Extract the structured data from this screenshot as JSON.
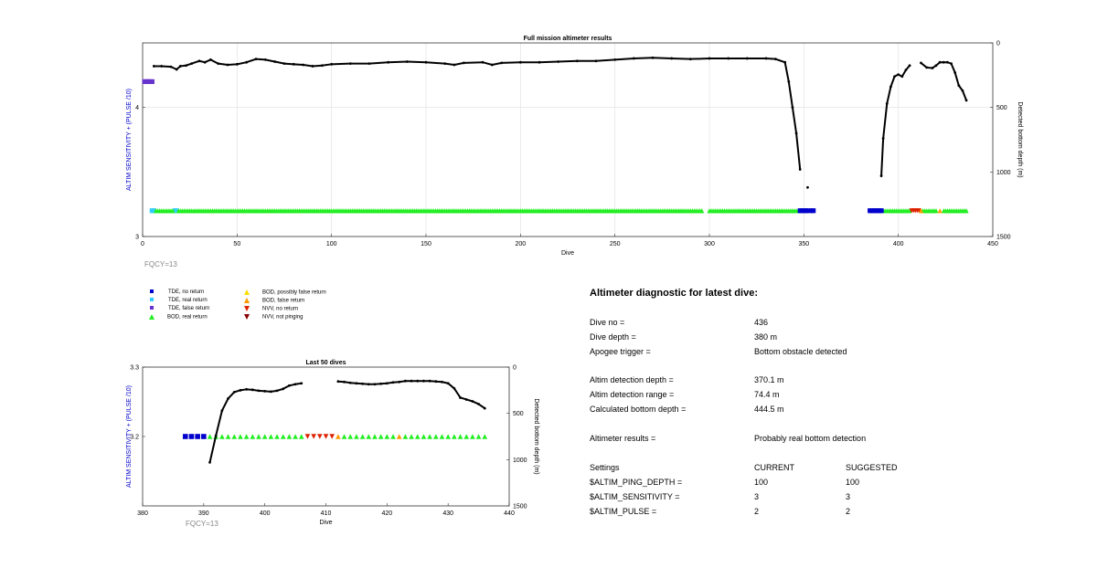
{
  "chart_data": [
    {
      "type": "scatter",
      "title": "Full mission altimeter results",
      "xlabel": "Dive",
      "ylabel_left": "ALTIM SENSITIVITY + (PULSE /10)",
      "ylabel_right": "Detected bottom depth (m)",
      "xlim": [
        0,
        450
      ],
      "ylim_left": [
        3,
        4.5
      ],
      "ylim_right": [
        1500,
        0
      ],
      "x_ticks": [
        "0",
        "50",
        "100",
        "150",
        "200",
        "250",
        "300",
        "350",
        "400",
        "450"
      ],
      "y_ticks_left": [
        "3",
        "4"
      ],
      "y_ticks_right": [
        "0",
        "500",
        "1000",
        "1500"
      ],
      "grid": true,
      "annotation": "FQCY=13",
      "sensitivity_markers": [
        {
          "category": "TDE, false return",
          "x": [
            1,
            2,
            3,
            4,
            5
          ],
          "y": [
            4.2,
            4.2,
            4.2,
            4.2,
            4.2
          ]
        }
      ],
      "status_markers": [
        {
          "category": "TDE, real return",
          "x_ranges": [
            [
              5,
              6
            ],
            [
              17,
              18
            ]
          ],
          "y": 3.2
        },
        {
          "category": "BOD, real return",
          "x_ranges": [
            [
              7,
              16
            ],
            [
              19,
              296
            ],
            [
              300,
              348
            ],
            [
              392,
              406
            ],
            [
              413,
              420
            ],
            [
              424,
              436
            ]
          ],
          "y": 3.2
        },
        {
          "category": "TDE, no return",
          "x_ranges": [
            [
              348,
              352
            ],
            [
              354,
              355
            ],
            [
              385,
              391
            ]
          ],
          "y": 3.2
        },
        {
          "category": "NVV, no return",
          "x_ranges": [
            [
              407,
              411
            ]
          ],
          "y": 3.2
        },
        {
          "category": "BOD, false return",
          "x_ranges": [
            [
              412,
              412
            ],
            [
              422,
              422
            ]
          ],
          "y": 3.2
        }
      ],
      "bottom_depth_series": [
        {
          "x": [
            6,
            10,
            15,
            18,
            20,
            23,
            26,
            30,
            33,
            36,
            40,
            45,
            50,
            55,
            60,
            65,
            70,
            75,
            80,
            85,
            90,
            95,
            100,
            110,
            120,
            130,
            140,
            150,
            160,
            165,
            170,
            180,
            185,
            190,
            200,
            210,
            220,
            230,
            240,
            250,
            260,
            270,
            280,
            290,
            300,
            310,
            320,
            330,
            335,
            340,
            342,
            344,
            346,
            348
          ],
          "y": [
            180,
            180,
            185,
            205,
            180,
            175,
            160,
            140,
            150,
            130,
            160,
            170,
            165,
            150,
            125,
            130,
            145,
            160,
            165,
            170,
            180,
            175,
            165,
            160,
            160,
            150,
            145,
            150,
            160,
            170,
            155,
            150,
            170,
            155,
            150,
            150,
            145,
            140,
            140,
            130,
            120,
            115,
            120,
            125,
            120,
            120,
            120,
            120,
            125,
            150,
            300,
            500,
            700,
            980
          ]
        },
        {
          "x": [
            352
          ],
          "y": [
            1120
          ]
        },
        {
          "x": [
            391,
            392,
            394,
            396,
            398,
            400,
            402,
            404,
            406
          ],
          "y": [
            1030,
            740,
            470,
            340,
            260,
            245,
            260,
            210,
            175
          ]
        },
        {
          "x": [
            412,
            415,
            418,
            420,
            422,
            424,
            426,
            428,
            430,
            432,
            434,
            436
          ],
          "y": [
            155,
            190,
            195,
            175,
            150,
            150,
            150,
            160,
            230,
            330,
            370,
            445
          ]
        }
      ]
    },
    {
      "type": "scatter",
      "title": "Last 50 dives",
      "xlabel": "Dive",
      "ylabel_left": "ALTIM SENSITIVITY + (PULSE /10)",
      "ylabel_right": "Detected bottom depth (m)",
      "xlim": [
        380,
        440
      ],
      "ylim_left": [
        3.1,
        3.3
      ],
      "ylim_right": [
        1500,
        0
      ],
      "x_ticks": [
        "380",
        "390",
        "400",
        "410",
        "420",
        "430",
        "440"
      ],
      "y_ticks_left": [
        "3.2",
        "3.3"
      ],
      "y_ticks_right": [
        "0",
        "500",
        "1000",
        "1500"
      ],
      "annotation": "FQCY=13",
      "status_markers": [
        {
          "category": "TDE, no return",
          "x": [
            387,
            388,
            389,
            390
          ],
          "y": 3.2
        },
        {
          "category": "BOD, real return",
          "x": [
            391,
            392,
            393,
            394,
            395,
            396,
            397,
            398,
            399,
            400,
            401,
            402,
            403,
            404,
            405,
            406,
            413,
            414,
            415,
            416,
            417,
            418,
            419,
            420,
            421,
            423,
            424,
            425,
            426,
            427,
            428,
            429,
            430,
            431,
            432,
            433,
            434,
            435,
            436
          ],
          "y": 3.2
        },
        {
          "category": "NVV, no return",
          "x": [
            407,
            408,
            409,
            410,
            411
          ],
          "y": 3.2
        },
        {
          "category": "BOD, false return",
          "x": [
            412,
            422
          ],
          "y": 3.2
        }
      ],
      "bottom_depth_series": [
        {
          "x": [
            391,
            392,
            393,
            394,
            395,
            396,
            397,
            398,
            399,
            400,
            401,
            402,
            403,
            404,
            405,
            406
          ],
          "y": [
            1030,
            740,
            470,
            340,
            270,
            250,
            240,
            245,
            255,
            260,
            265,
            255,
            235,
            200,
            185,
            175
          ]
        },
        {
          "x": [
            412,
            413,
            414,
            415,
            416,
            417,
            418,
            419,
            420,
            421,
            422,
            423,
            424,
            425,
            426,
            427,
            428,
            429,
            430,
            431,
            432,
            433,
            434,
            435,
            436
          ],
          "y": [
            155,
            160,
            170,
            175,
            180,
            185,
            185,
            180,
            175,
            165,
            160,
            150,
            150,
            150,
            150,
            150,
            155,
            160,
            175,
            230,
            330,
            350,
            370,
            400,
            445
          ]
        }
      ]
    }
  ],
  "legend": {
    "items": [
      {
        "label": "TDE, no return",
        "color": "#0000cc",
        "marker": "square"
      },
      {
        "label": "TDE, real return",
        "color": "#33ccff",
        "marker": "square"
      },
      {
        "label": "TDE, false return",
        "color": "#6633cc",
        "marker": "square"
      },
      {
        "label": "BOD, real return",
        "color": "#22ee22",
        "marker": "triangle-up"
      },
      {
        "label": "BOD, possibly false return",
        "color": "#ffdd00",
        "marker": "triangle-up"
      },
      {
        "label": "BOD, false return",
        "color": "#ff9900",
        "marker": "triangle-up"
      },
      {
        "label": "NVV, no return",
        "color": "#dd2200",
        "marker": "triangle-down"
      },
      {
        "label": "NVV, not pinging",
        "color": "#880000",
        "marker": "triangle-down"
      }
    ]
  },
  "diagnostic": {
    "title": "Altimeter diagnostic for latest dive:",
    "rows": [
      {
        "label": "Dive no =",
        "value": "436",
        "suggested": ""
      },
      {
        "label": "Dive depth =",
        "value": "380 m",
        "suggested": ""
      },
      {
        "label": "Apogee trigger =",
        "value": "Bottom obstacle detected",
        "suggested": ""
      },
      {
        "label": "Altim detection depth =",
        "value": "370.1 m",
        "suggested": ""
      },
      {
        "label": "Altim detection range =",
        "value": "74.4 m",
        "suggested": ""
      },
      {
        "label": "Calculated bottom depth =",
        "value": "444.5 m",
        "suggested": ""
      },
      {
        "label": "Altimeter results =",
        "value": "Probably real bottom detection",
        "suggested": ""
      },
      {
        "label": "Settings",
        "value": "CURRENT",
        "suggested": "SUGGESTED"
      },
      {
        "label": "$ALTIM_PING_DEPTH =",
        "value": "100",
        "suggested": "100"
      },
      {
        "label": "$ALTIM_SENSITIVITY =",
        "value": "3",
        "suggested": "3"
      },
      {
        "label": "$ALTIM_PULSE =",
        "value": "2",
        "suggested": "2"
      }
    ]
  },
  "colors": {
    "left_axis_label": "#0000cc",
    "annotation": "#888888",
    "depth_line": "#000000"
  }
}
